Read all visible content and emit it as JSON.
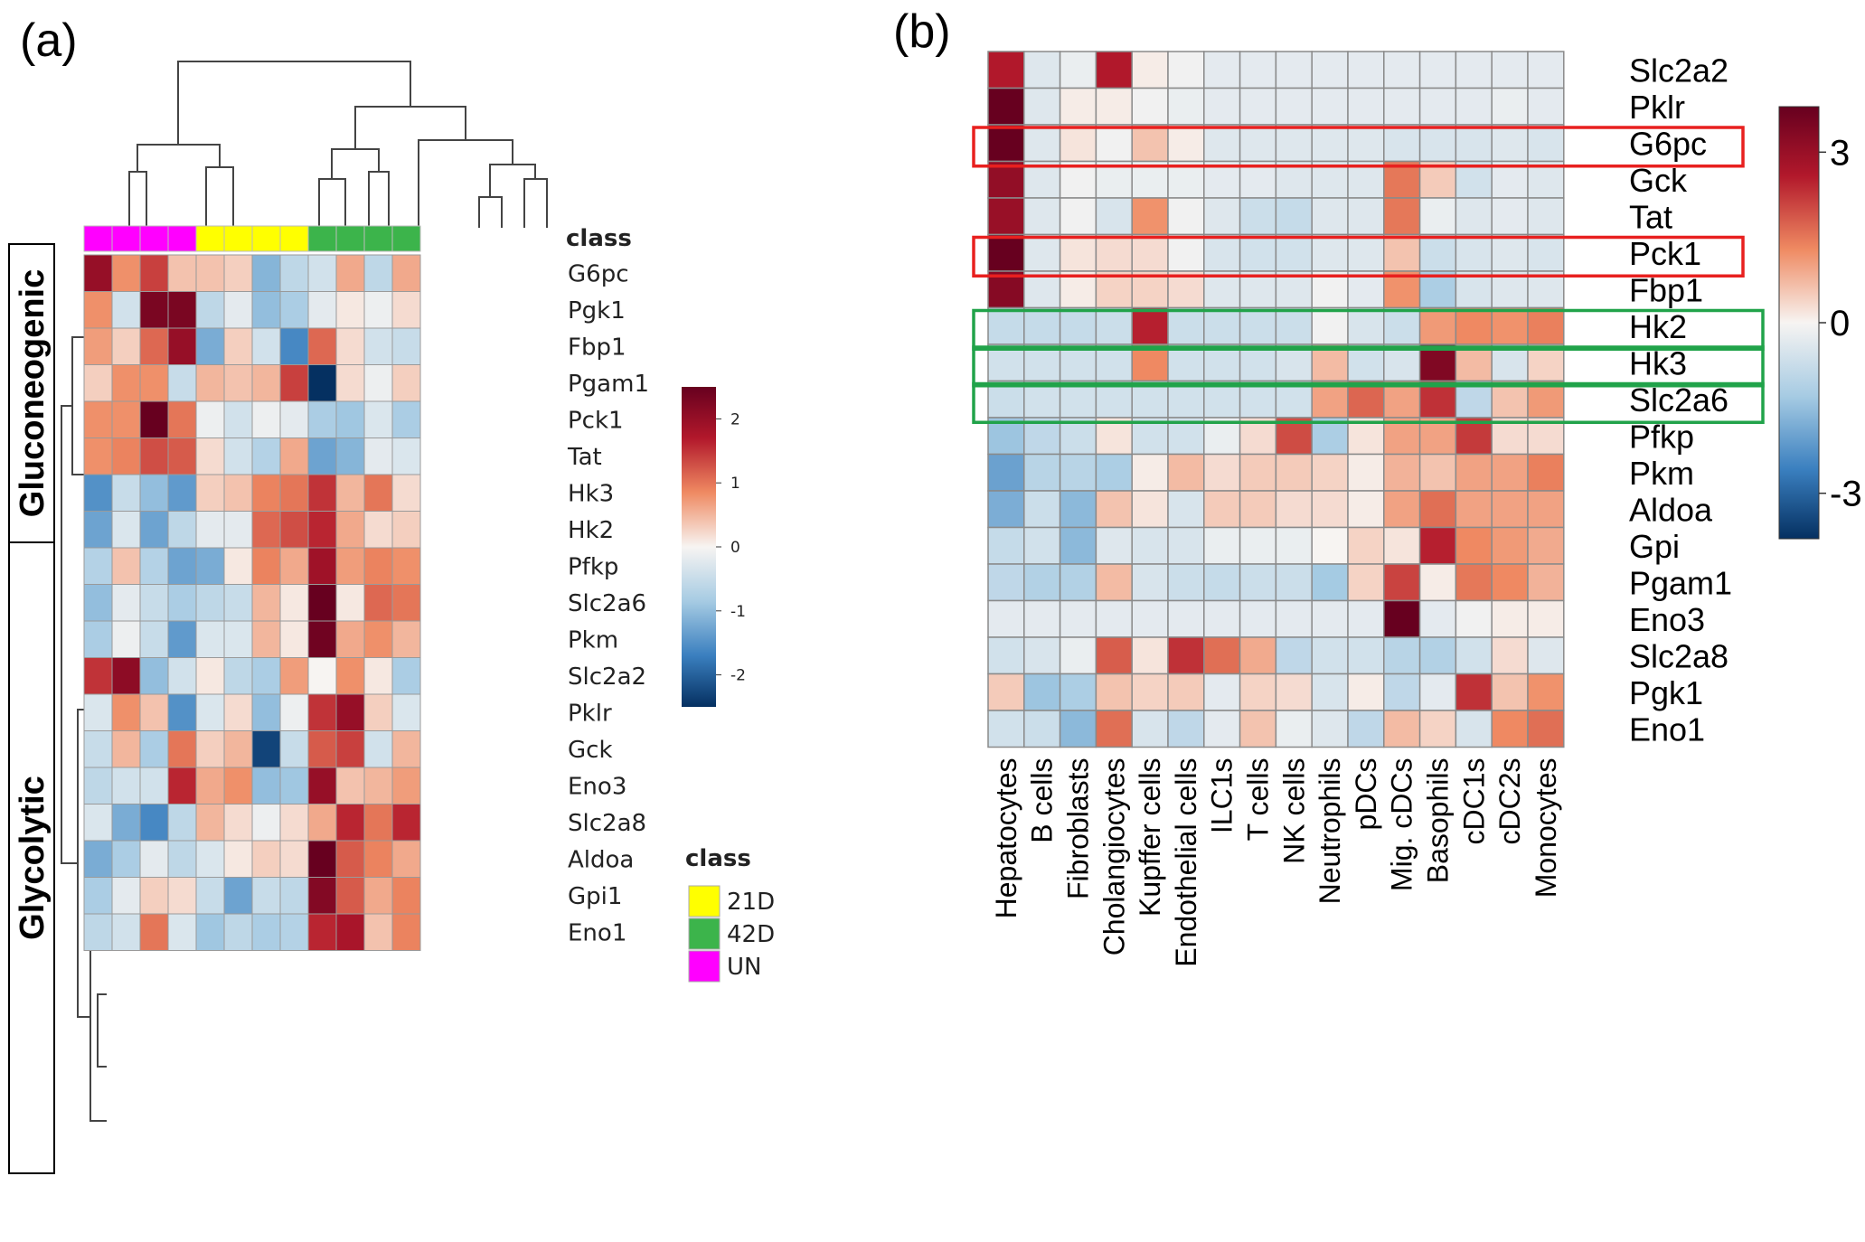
{
  "chart_data": [
    {
      "type": "heatmap",
      "panel": "(a)",
      "row_labels": [
        "G6pc",
        "Pgk1",
        "Fbp1",
        "Pgam1",
        "Pck1",
        "Tat",
        "Hk3",
        "Hk2",
        "Pfkp",
        "Slc2a6",
        "Pkm",
        "Slc2a2",
        "Pklr",
        "Gck",
        "Eno3",
        "Slc2a8",
        "Aldoa",
        "Gpi1",
        "Eno1"
      ],
      "column_classes": [
        "UN",
        "UN",
        "UN",
        "UN",
        "21D",
        "21D",
        "21D",
        "21D",
        "42D",
        "42D",
        "42D",
        "42D"
      ],
      "class_header": "class",
      "legend_title": "class",
      "legend_entries": [
        {
          "label": "21D",
          "color": "#ffff00"
        },
        {
          "label": "42D",
          "color": "#3cb44b"
        },
        {
          "label": "UN",
          "color": "#ff00ff"
        }
      ],
      "colorbar_ticks": [
        "2",
        "1",
        "0",
        "-1",
        "-2"
      ],
      "colorbar_range": [
        -2.5,
        2.5
      ],
      "group_labels": [
        "Gluconeogenic",
        "Glycolytic"
      ],
      "values": [
        [
          2.0,
          0.8,
          1.4,
          0.4,
          0.4,
          0.3,
          -1.1,
          -0.6,
          -0.4,
          0.6,
          -0.6,
          0.6
        ],
        [
          0.8,
          -0.4,
          2.3,
          2.3,
          -0.6,
          -0.2,
          -1.0,
          -0.8,
          -0.2,
          0.1,
          -0.1,
          0.2
        ],
        [
          0.7,
          0.3,
          1.1,
          2.0,
          -1.2,
          0.3,
          -0.4,
          -1.6,
          1.1,
          0.2,
          -0.4,
          -0.5
        ],
        [
          0.3,
          0.8,
          0.8,
          -0.5,
          0.5,
          0.4,
          0.5,
          1.4,
          -2.8,
          0.2,
          -0.1,
          0.3
        ],
        [
          0.8,
          0.8,
          2.6,
          1.0,
          -0.1,
          -0.4,
          -0.1,
          -0.2,
          -0.8,
          -0.9,
          -0.3,
          -0.8
        ],
        [
          0.8,
          0.9,
          1.3,
          1.2,
          0.2,
          -0.4,
          -0.7,
          0.6,
          -1.3,
          -1.1,
          -0.2,
          -0.3
        ],
        [
          -1.5,
          -0.5,
          -1.0,
          -1.4,
          0.3,
          0.4,
          0.9,
          1.0,
          1.5,
          0.5,
          1.0,
          0.2
        ],
        [
          -1.3,
          -0.3,
          -1.3,
          -0.6,
          -0.2,
          -0.2,
          1.1,
          1.3,
          1.6,
          0.6,
          0.2,
          0.3
        ],
        [
          -0.7,
          0.4,
          -0.7,
          -1.3,
          -1.2,
          0.1,
          0.9,
          0.6,
          1.9,
          0.7,
          0.9,
          0.8
        ],
        [
          -1.0,
          -0.2,
          -0.5,
          -0.8,
          -0.6,
          -0.5,
          0.5,
          0.1,
          2.5,
          0.1,
          1.1,
          1.0
        ],
        [
          -0.8,
          -0.1,
          -0.5,
          -1.4,
          -0.3,
          -0.3,
          0.5,
          0.1,
          2.4,
          0.6,
          0.8,
          0.5
        ],
        [
          1.5,
          2.1,
          -1.0,
          -0.4,
          0.1,
          -0.6,
          -0.8,
          0.7,
          0.0,
          0.8,
          0.1,
          -0.8
        ],
        [
          -0.3,
          0.8,
          0.4,
          -1.5,
          -0.3,
          0.2,
          -1.0,
          -0.1,
          1.5,
          2.0,
          0.3,
          -0.3
        ],
        [
          -0.5,
          0.5,
          -0.8,
          1.0,
          0.3,
          0.5,
          -2.3,
          -0.5,
          1.2,
          1.4,
          -0.4,
          0.5
        ],
        [
          -0.6,
          -0.4,
          -0.4,
          1.6,
          0.6,
          0.8,
          -1.0,
          -0.9,
          2.0,
          0.4,
          0.5,
          0.7
        ],
        [
          -0.3,
          -1.2,
          -1.6,
          -0.6,
          0.5,
          0.2,
          -0.1,
          0.2,
          0.6,
          1.6,
          1.0,
          1.6
        ],
        [
          -1.2,
          -0.8,
          -0.2,
          -0.6,
          -0.3,
          0.1,
          0.3,
          0.2,
          2.6,
          1.2,
          0.9,
          0.6
        ],
        [
          -0.8,
          -0.2,
          0.3,
          0.2,
          -0.5,
          -1.3,
          -0.5,
          -0.6,
          2.2,
          1.2,
          0.6,
          0.9
        ],
        [
          -0.6,
          -0.4,
          1.0,
          -0.3,
          -0.9,
          -0.6,
          -0.8,
          -0.7,
          1.6,
          1.8,
          0.4,
          0.9
        ]
      ]
    },
    {
      "type": "heatmap",
      "panel": "(b)",
      "row_labels": [
        "Slc2a2",
        "Pklr",
        "G6pc",
        "Gck",
        "Tat",
        "Pck1",
        "Fbp1",
        "Hk2",
        "Hk3",
        "Slc2a6",
        "Pfkp",
        "Pkm",
        "Aldoa",
        "Gpi",
        "Pgam1",
        "Eno3",
        "Slc2a8",
        "Pgk1",
        "Eno1"
      ],
      "col_labels": [
        "Hepatocytes",
        "B cells",
        "Fibroblasts",
        "Cholangiocytes",
        "Kupffer cells",
        "Endothelial cells",
        "ILC1s",
        "T cells",
        "NK cells",
        "Neutrophils",
        "pDCs",
        "Mig. cDCs",
        "Basophils",
        "cDC1s",
        "cDC2s",
        "Monocytes"
      ],
      "colorbar_ticks": [
        "3",
        "0",
        "-3"
      ],
      "colorbar_range": [
        -3.8,
        3.8
      ],
      "highlighted_rows_red": [
        "G6pc",
        "Pck1"
      ],
      "highlighted_rows_green": [
        "Hk2",
        "Hk3",
        "Slc2a6"
      ],
      "values": [
        [
          2.6,
          -0.4,
          -0.2,
          2.6,
          0.1,
          -0.1,
          -0.3,
          -0.3,
          -0.3,
          -0.3,
          -0.3,
          -0.3,
          -0.3,
          -0.3,
          -0.3,
          -0.3
        ],
        [
          3.8,
          -0.4,
          0.1,
          0.1,
          -0.1,
          -0.2,
          -0.3,
          -0.3,
          -0.3,
          -0.3,
          -0.3,
          -0.3,
          -0.3,
          -0.3,
          -0.2,
          -0.3
        ],
        [
          3.8,
          -0.4,
          0.2,
          -0.1,
          0.6,
          0.1,
          -0.4,
          -0.4,
          -0.4,
          -0.4,
          -0.4,
          -0.5,
          -0.5,
          -0.5,
          -0.4,
          -0.5
        ],
        [
          3.1,
          -0.4,
          -0.1,
          -0.2,
          -0.2,
          -0.2,
          -0.3,
          -0.3,
          -0.4,
          -0.4,
          -0.4,
          1.5,
          0.5,
          -0.6,
          -0.3,
          -0.4
        ],
        [
          3.0,
          -0.4,
          -0.1,
          -0.5,
          1.2,
          -0.1,
          -0.4,
          -0.7,
          -0.8,
          -0.4,
          -0.4,
          1.5,
          -0.2,
          -0.4,
          -0.3,
          -0.4
        ],
        [
          3.8,
          -0.4,
          0.2,
          0.3,
          0.3,
          -0.1,
          -0.5,
          -0.6,
          -0.6,
          -0.4,
          -0.4,
          0.6,
          -0.7,
          -0.5,
          -0.4,
          -0.5
        ],
        [
          3.3,
          -0.4,
          0.1,
          0.4,
          0.4,
          0.3,
          -0.4,
          -0.4,
          -0.4,
          -0.1,
          -0.3,
          1.2,
          -1.2,
          -0.5,
          -0.4,
          -0.4
        ],
        [
          -0.8,
          -0.8,
          -0.8,
          -0.7,
          2.5,
          -0.7,
          -0.7,
          -0.7,
          -0.7,
          -0.1,
          -0.5,
          -0.7,
          1.1,
          1.3,
          1.2,
          1.4
        ],
        [
          -0.6,
          -0.6,
          -0.6,
          -0.6,
          1.3,
          -0.6,
          -0.6,
          -0.6,
          -0.5,
          0.7,
          -0.6,
          -0.5,
          3.4,
          0.7,
          -0.5,
          0.4
        ],
        [
          -0.7,
          -0.6,
          -0.6,
          -0.6,
          -0.6,
          -0.6,
          -0.6,
          -0.6,
          -0.6,
          1.0,
          1.7,
          1.0,
          2.3,
          -0.9,
          0.6,
          1.1
        ],
        [
          -1.4,
          -0.9,
          -0.7,
          0.2,
          -0.6,
          -0.6,
          -0.2,
          0.3,
          2.0,
          -1.2,
          0.2,
          1.0,
          1.0,
          2.2,
          0.3,
          0.3
        ],
        [
          -2.0,
          -1.0,
          -1.0,
          -1.2,
          0.1,
          0.7,
          0.3,
          0.5,
          0.5,
          0.4,
          0.1,
          0.8,
          0.6,
          1.0,
          1.0,
          1.4
        ],
        [
          -1.8,
          -0.7,
          -1.6,
          0.6,
          0.2,
          -0.5,
          0.5,
          0.5,
          0.3,
          0.3,
          0.1,
          1.0,
          1.6,
          1.0,
          1.0,
          1.0
        ],
        [
          -0.8,
          -0.6,
          -1.6,
          -0.4,
          -0.5,
          -0.5,
          -0.2,
          -0.2,
          -0.2,
          0.0,
          0.4,
          0.2,
          2.5,
          1.3,
          1.1,
          0.9
        ],
        [
          -0.9,
          -1.1,
          -1.1,
          0.7,
          -0.5,
          -0.7,
          -0.8,
          -0.7,
          -0.7,
          -1.3,
          0.4,
          2.1,
          0.1,
          1.5,
          1.3,
          0.8
        ],
        [
          -0.3,
          -0.3,
          -0.3,
          -0.3,
          -0.3,
          -0.3,
          -0.3,
          -0.3,
          -0.3,
          -0.3,
          -0.3,
          3.8,
          -0.3,
          -0.1,
          0.1,
          0.1
        ],
        [
          -0.6,
          -0.5,
          -0.2,
          1.8,
          0.2,
          2.3,
          1.6,
          0.9,
          -0.9,
          -0.6,
          -0.6,
          -1.0,
          -1.1,
          -0.6,
          0.3,
          -0.4
        ],
        [
          0.5,
          -1.4,
          -1.2,
          0.6,
          0.4,
          0.5,
          -0.3,
          0.4,
          0.3,
          -0.5,
          0.1,
          -0.9,
          -0.3,
          2.3,
          0.6,
          1.2
        ],
        [
          -0.6,
          -0.7,
          -1.6,
          1.6,
          -0.5,
          -0.9,
          -0.3,
          0.6,
          -0.2,
          -0.4,
          -0.9,
          0.7,
          0.4,
          -0.5,
          1.3,
          1.6
        ]
      ]
    }
  ]
}
